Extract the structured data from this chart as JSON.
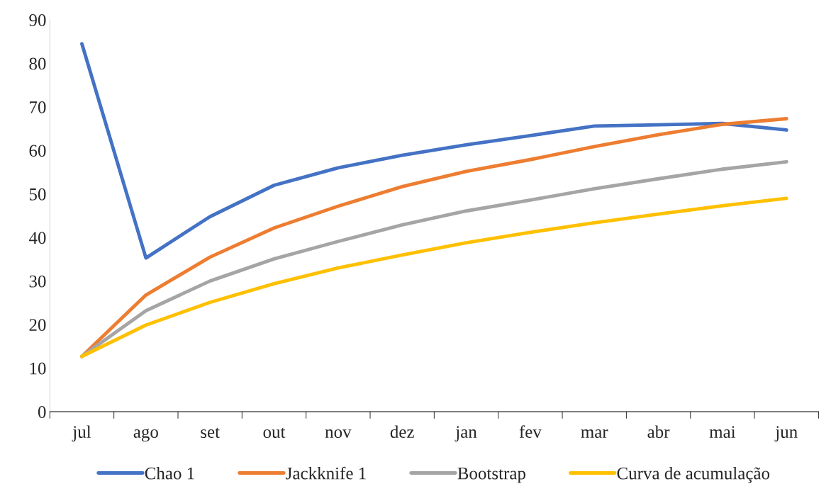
{
  "chart_data": {
    "type": "line",
    "categories": [
      "jul",
      "ago",
      "set",
      "out",
      "nov",
      "dez",
      "jan",
      "fev",
      "mar",
      "abr",
      "mai",
      "jun"
    ],
    "series": [
      {
        "name": "Chao 1",
        "color": "#4472c4",
        "values": [
          84.5,
          35.3,
          44.8,
          52.0,
          56.0,
          58.9,
          61.3,
          63.4,
          65.6,
          65.9,
          66.2,
          64.7
        ]
      },
      {
        "name": "Jackknife 1",
        "color": "#ed7d31",
        "values": [
          12.7,
          26.8,
          35.5,
          42.2,
          47.2,
          51.7,
          55.2,
          57.9,
          60.9,
          63.6,
          66.0,
          67.3
        ]
      },
      {
        "name": "Bootstrap",
        "color": "#a5a5a5",
        "values": [
          12.7,
          23.2,
          30.0,
          35.1,
          39.1,
          42.9,
          46.1,
          48.6,
          51.2,
          53.5,
          55.7,
          57.4
        ]
      },
      {
        "name": "Curva de acumulação",
        "color": "#ffc000",
        "values": [
          12.7,
          19.9,
          25.1,
          29.4,
          33.0,
          36.0,
          38.8,
          41.2,
          43.4,
          45.4,
          47.3,
          49.0
        ]
      }
    ],
    "ylim": [
      0,
      90
    ],
    "yticks": [
      0,
      10,
      20,
      30,
      40,
      50,
      60,
      70,
      80,
      90
    ],
    "grid": false,
    "legend": "bottom",
    "marker": "none",
    "line_style": "solid"
  }
}
